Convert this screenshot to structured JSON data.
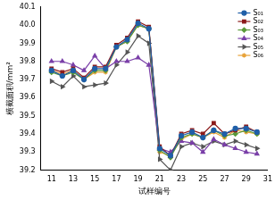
{
  "chart_data": {
    "type": "line",
    "x_label": "试样编号",
    "y_label": "横截面积/mm²",
    "x": [
      11,
      12,
      13,
      14,
      15,
      16,
      17,
      18,
      19,
      20,
      21,
      22,
      23,
      24,
      25,
      26,
      27,
      28,
      29,
      30
    ],
    "xlim": [
      10,
      31
    ],
    "xticks": [
      11,
      13,
      15,
      17,
      19,
      21,
      23,
      25,
      27,
      29,
      31
    ],
    "ylim": [
      39.2,
      40.1
    ],
    "yticks": [
      39.2,
      39.3,
      39.4,
      39.5,
      39.6,
      39.7,
      39.8,
      39.9,
      {
        "value": 40,
        "label": "40.0"
      },
      40.1
    ],
    "grid": false,
    "legend": "upper right",
    "series": [
      {
        "name": "S₀₁",
        "color": "#1f5fa8",
        "marker": "circle",
        "values": [
          39.75,
          39.72,
          39.75,
          39.7,
          39.76,
          39.76,
          39.88,
          39.92,
          40.01,
          39.98,
          39.32,
          39.28,
          39.39,
          39.41,
          39.38,
          39.42,
          39.4,
          39.43,
          39.43,
          39.41
        ]
      },
      {
        "name": "S₀₂",
        "color": "#8b1a1a",
        "marker": "square",
        "values": [
          39.76,
          39.74,
          39.76,
          39.71,
          39.77,
          39.77,
          39.89,
          39.93,
          40.02,
          39.99,
          39.33,
          39.28,
          39.4,
          39.42,
          39.4,
          39.46,
          39.4,
          39.42,
          39.44,
          39.41
        ]
      },
      {
        "name": "S₀₃",
        "color": "#5a9a3a",
        "marker": "diamond",
        "values": [
          39.74,
          39.72,
          39.74,
          39.7,
          39.75,
          39.75,
          39.88,
          39.91,
          40.0,
          39.98,
          39.31,
          39.27,
          39.38,
          39.4,
          39.38,
          39.42,
          39.39,
          39.4,
          39.42,
          39.4
        ]
      },
      {
        "name": "S₀₄",
        "color": "#7a3fa8",
        "marker": "triangle",
        "values": [
          39.8,
          39.8,
          39.78,
          39.75,
          39.83,
          39.76,
          39.8,
          39.8,
          39.82,
          39.78,
          39.32,
          39.3,
          39.36,
          39.35,
          39.3,
          39.37,
          39.34,
          39.32,
          39.3,
          39.29
        ]
      },
      {
        "name": "S₀₅",
        "color": "#555555",
        "marker": "triangle-right",
        "values": [
          39.69,
          39.66,
          39.72,
          39.66,
          39.67,
          39.68,
          39.78,
          39.85,
          39.94,
          39.9,
          39.26,
          39.2,
          39.33,
          39.35,
          39.33,
          39.36,
          39.34,
          39.36,
          39.34,
          39.32
        ]
      },
      {
        "name": "S₀₆",
        "color": "#e8a33a",
        "marker": "star",
        "values": [
          39.75,
          39.73,
          39.75,
          39.7,
          39.74,
          39.74,
          39.88,
          39.91,
          40.0,
          39.98,
          39.3,
          39.28,
          39.37,
          39.4,
          39.38,
          39.41,
          39.38,
          39.42,
          39.41,
          39.4
        ]
      }
    ]
  }
}
